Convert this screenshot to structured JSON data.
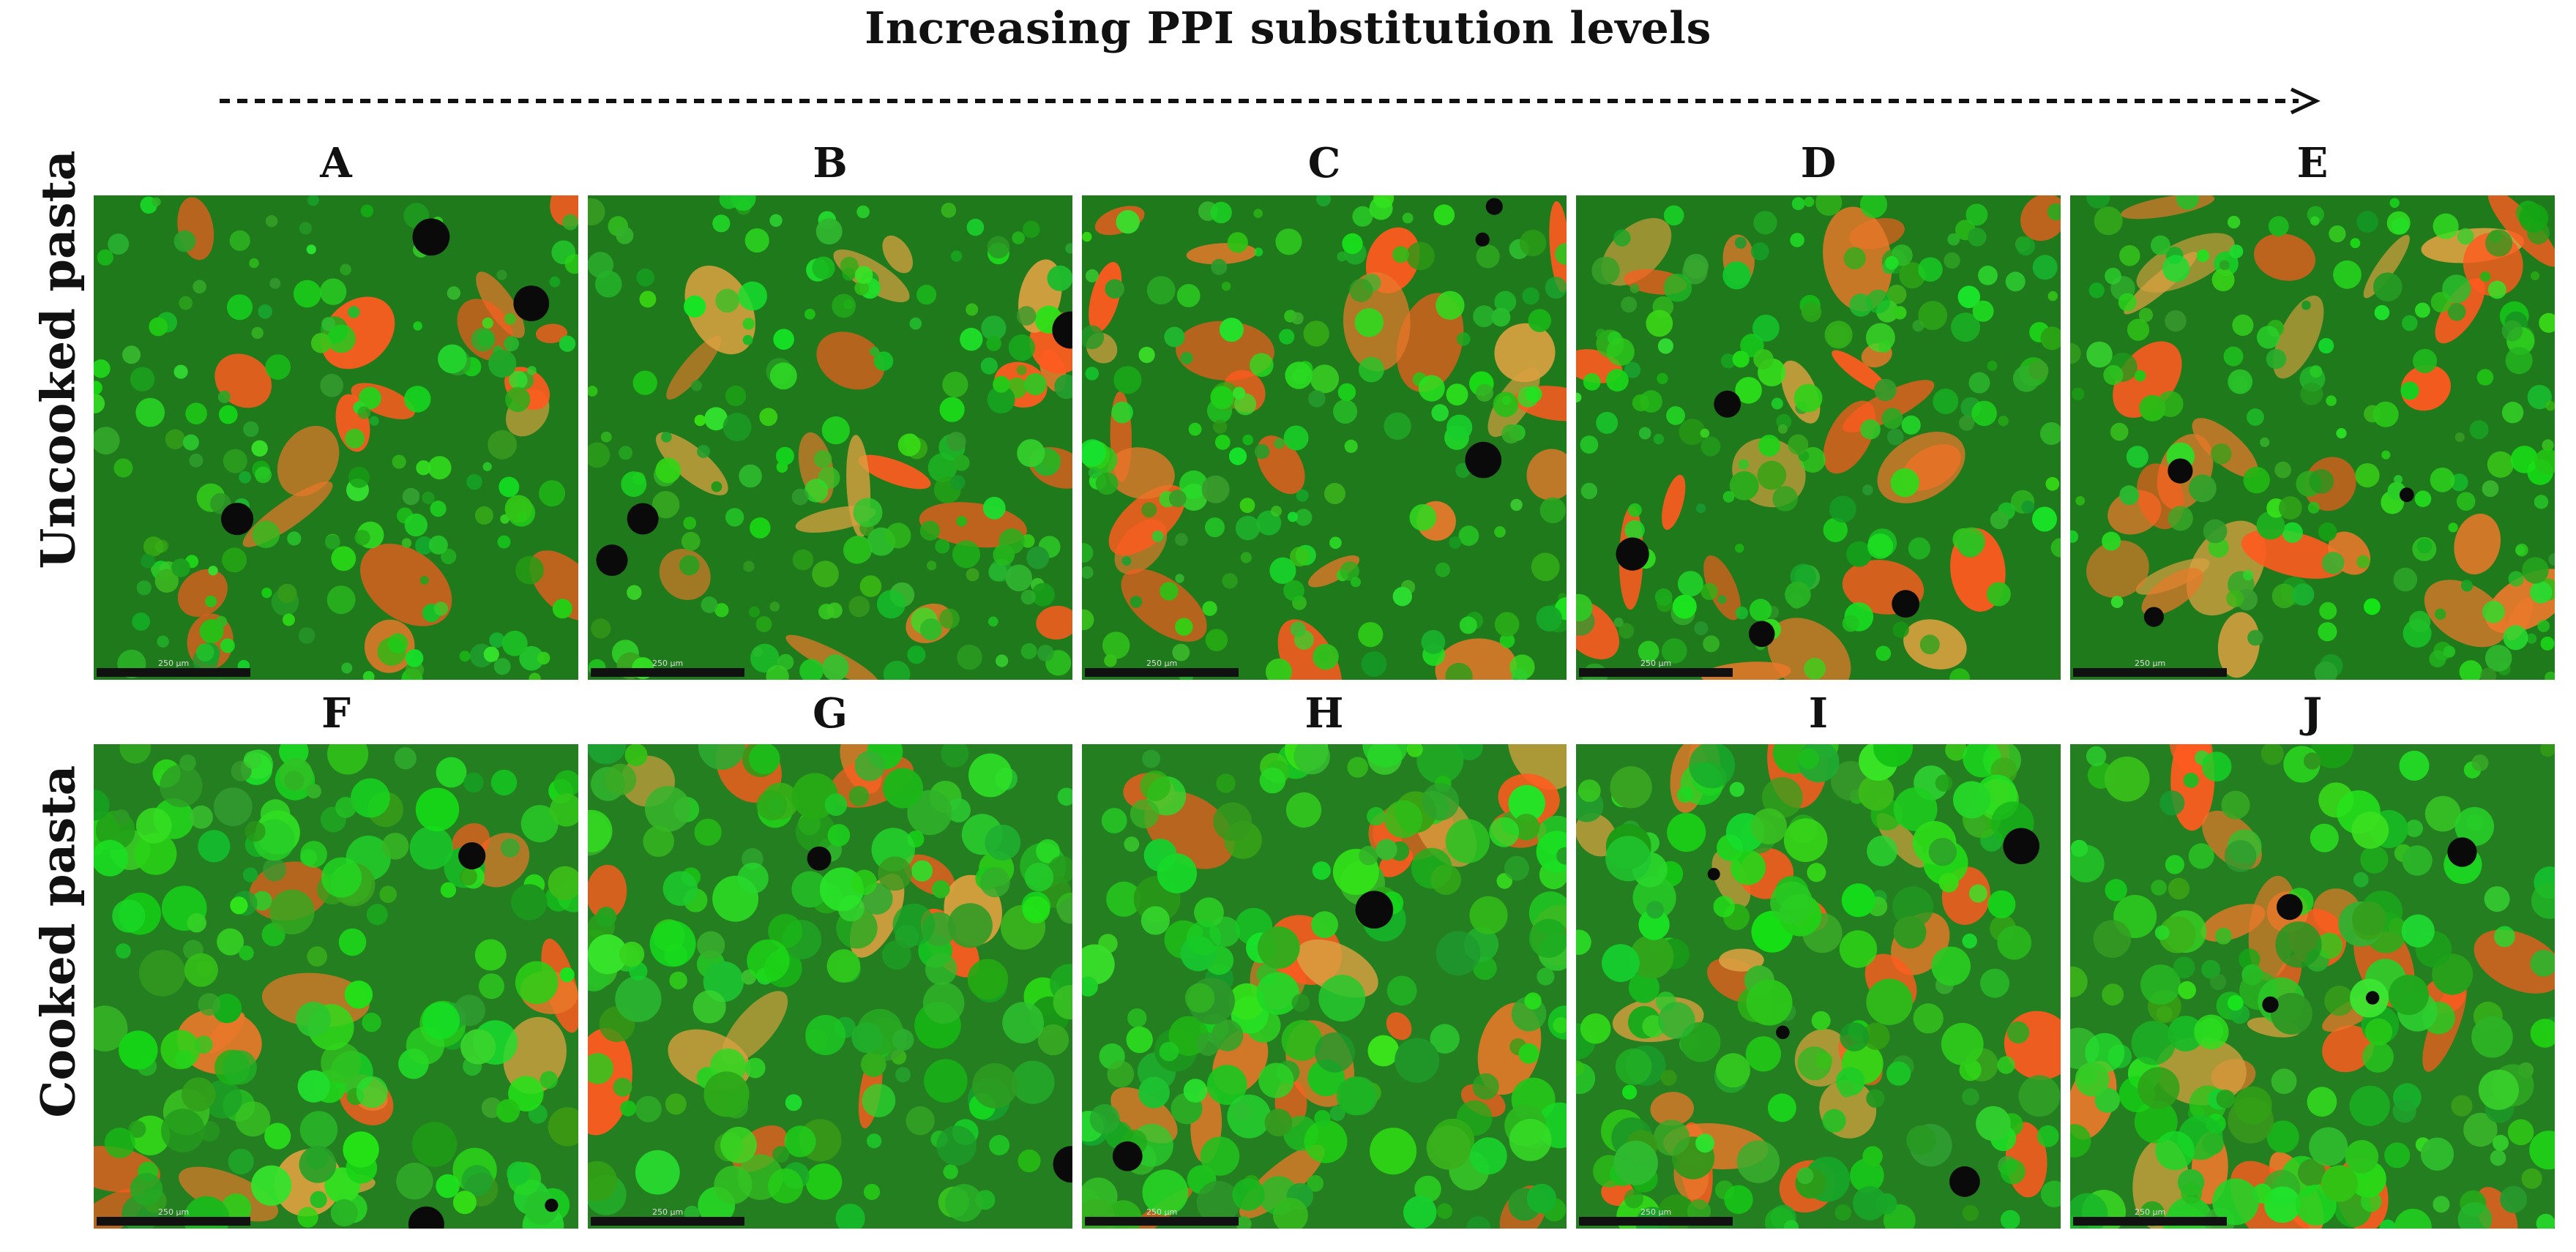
{
  "figure": {
    "title": "Increasing PPI substitution levels",
    "row_labels": [
      "Uncooked pasta",
      "Cooked pasta"
    ],
    "scale_bar_label": "250 µm",
    "colors": {
      "green_channel": "#2ea82a",
      "red_channel": "#ff5a1f",
      "background": "#ffffff"
    },
    "panels": [
      {
        "label": "A",
        "row": "Uncooked pasta",
        "red_fraction": 0.25
      },
      {
        "label": "B",
        "row": "Uncooked pasta",
        "red_fraction": 0.3
      },
      {
        "label": "C",
        "row": "Uncooked pasta",
        "red_fraction": 0.4
      },
      {
        "label": "D",
        "row": "Uncooked pasta",
        "red_fraction": 0.4
      },
      {
        "label": "E",
        "row": "Uncooked pasta",
        "red_fraction": 0.5
      },
      {
        "label": "F",
        "row": "Cooked pasta",
        "red_fraction": 0.2
      },
      {
        "label": "G",
        "row": "Cooked pasta",
        "red_fraction": 0.15
      },
      {
        "label": "H",
        "row": "Cooked pasta",
        "red_fraction": 0.4
      },
      {
        "label": "I",
        "row": "Cooked pasta",
        "red_fraction": 0.45
      },
      {
        "label": "J",
        "row": "Cooked pasta",
        "red_fraction": 0.45
      }
    ]
  }
}
